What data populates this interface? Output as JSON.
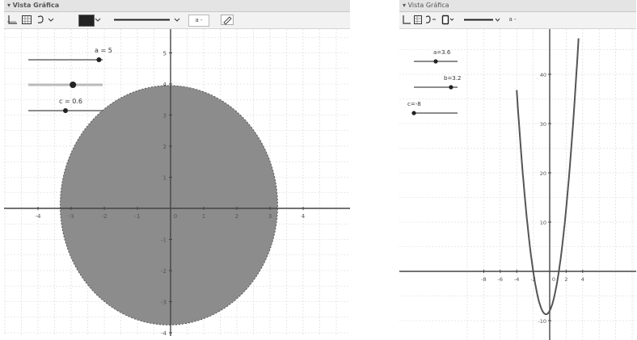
{
  "left": {
    "title": "Vista Gráfica",
    "collapse_glyph": "▾",
    "toolbar": {
      "axes_icon": "axes-icon",
      "grid_icon": "grid-icon",
      "point_capture_icon": "point-capture-icon",
      "color": "#222222",
      "line_style": "solid",
      "size_label": "a -",
      "pencil_icon": "pencil-icon"
    },
    "sliders": [
      {
        "label": "a = 5",
        "value_fraction": 0.95
      },
      {
        "label": "",
        "value_fraction": 0.6
      },
      {
        "label": "c = 0.6",
        "value_fraction": 0.5
      }
    ],
    "x_ticks": [
      "-4",
      "-3",
      "-2",
      "-1",
      "0",
      "1",
      "2",
      "3",
      "4"
    ],
    "y_ticks": [
      "5",
      "4",
      "3",
      "2",
      "1",
      "0",
      "-1",
      "-2",
      "-3",
      "-4"
    ],
    "fill_color": "#8c8c8c"
  },
  "right": {
    "title": "Vista Gráfica",
    "collapse_glyph": "▾",
    "toolbar": {
      "axes_icon": "axes-icon",
      "grid_icon": "grid-icon",
      "point_capture_icon": "point-capture-icon",
      "color_box_icon": "color-box-icon",
      "line_style": "solid",
      "size_label": "a -"
    },
    "sliders": [
      {
        "label": "a=3.6",
        "value_fraction": 0.5
      },
      {
        "label": "b=3.2",
        "value_fraction": 0.85
      },
      {
        "label": "c=-8",
        "value_fraction": 0.0
      }
    ],
    "x_ticks": [
      "-8",
      "-6",
      "-4",
      "-2",
      "0",
      "2",
      "4"
    ],
    "y_ticks": [
      "40",
      "30",
      "20",
      "10",
      "0",
      "-10"
    ],
    "curve_color": "#555555"
  }
}
